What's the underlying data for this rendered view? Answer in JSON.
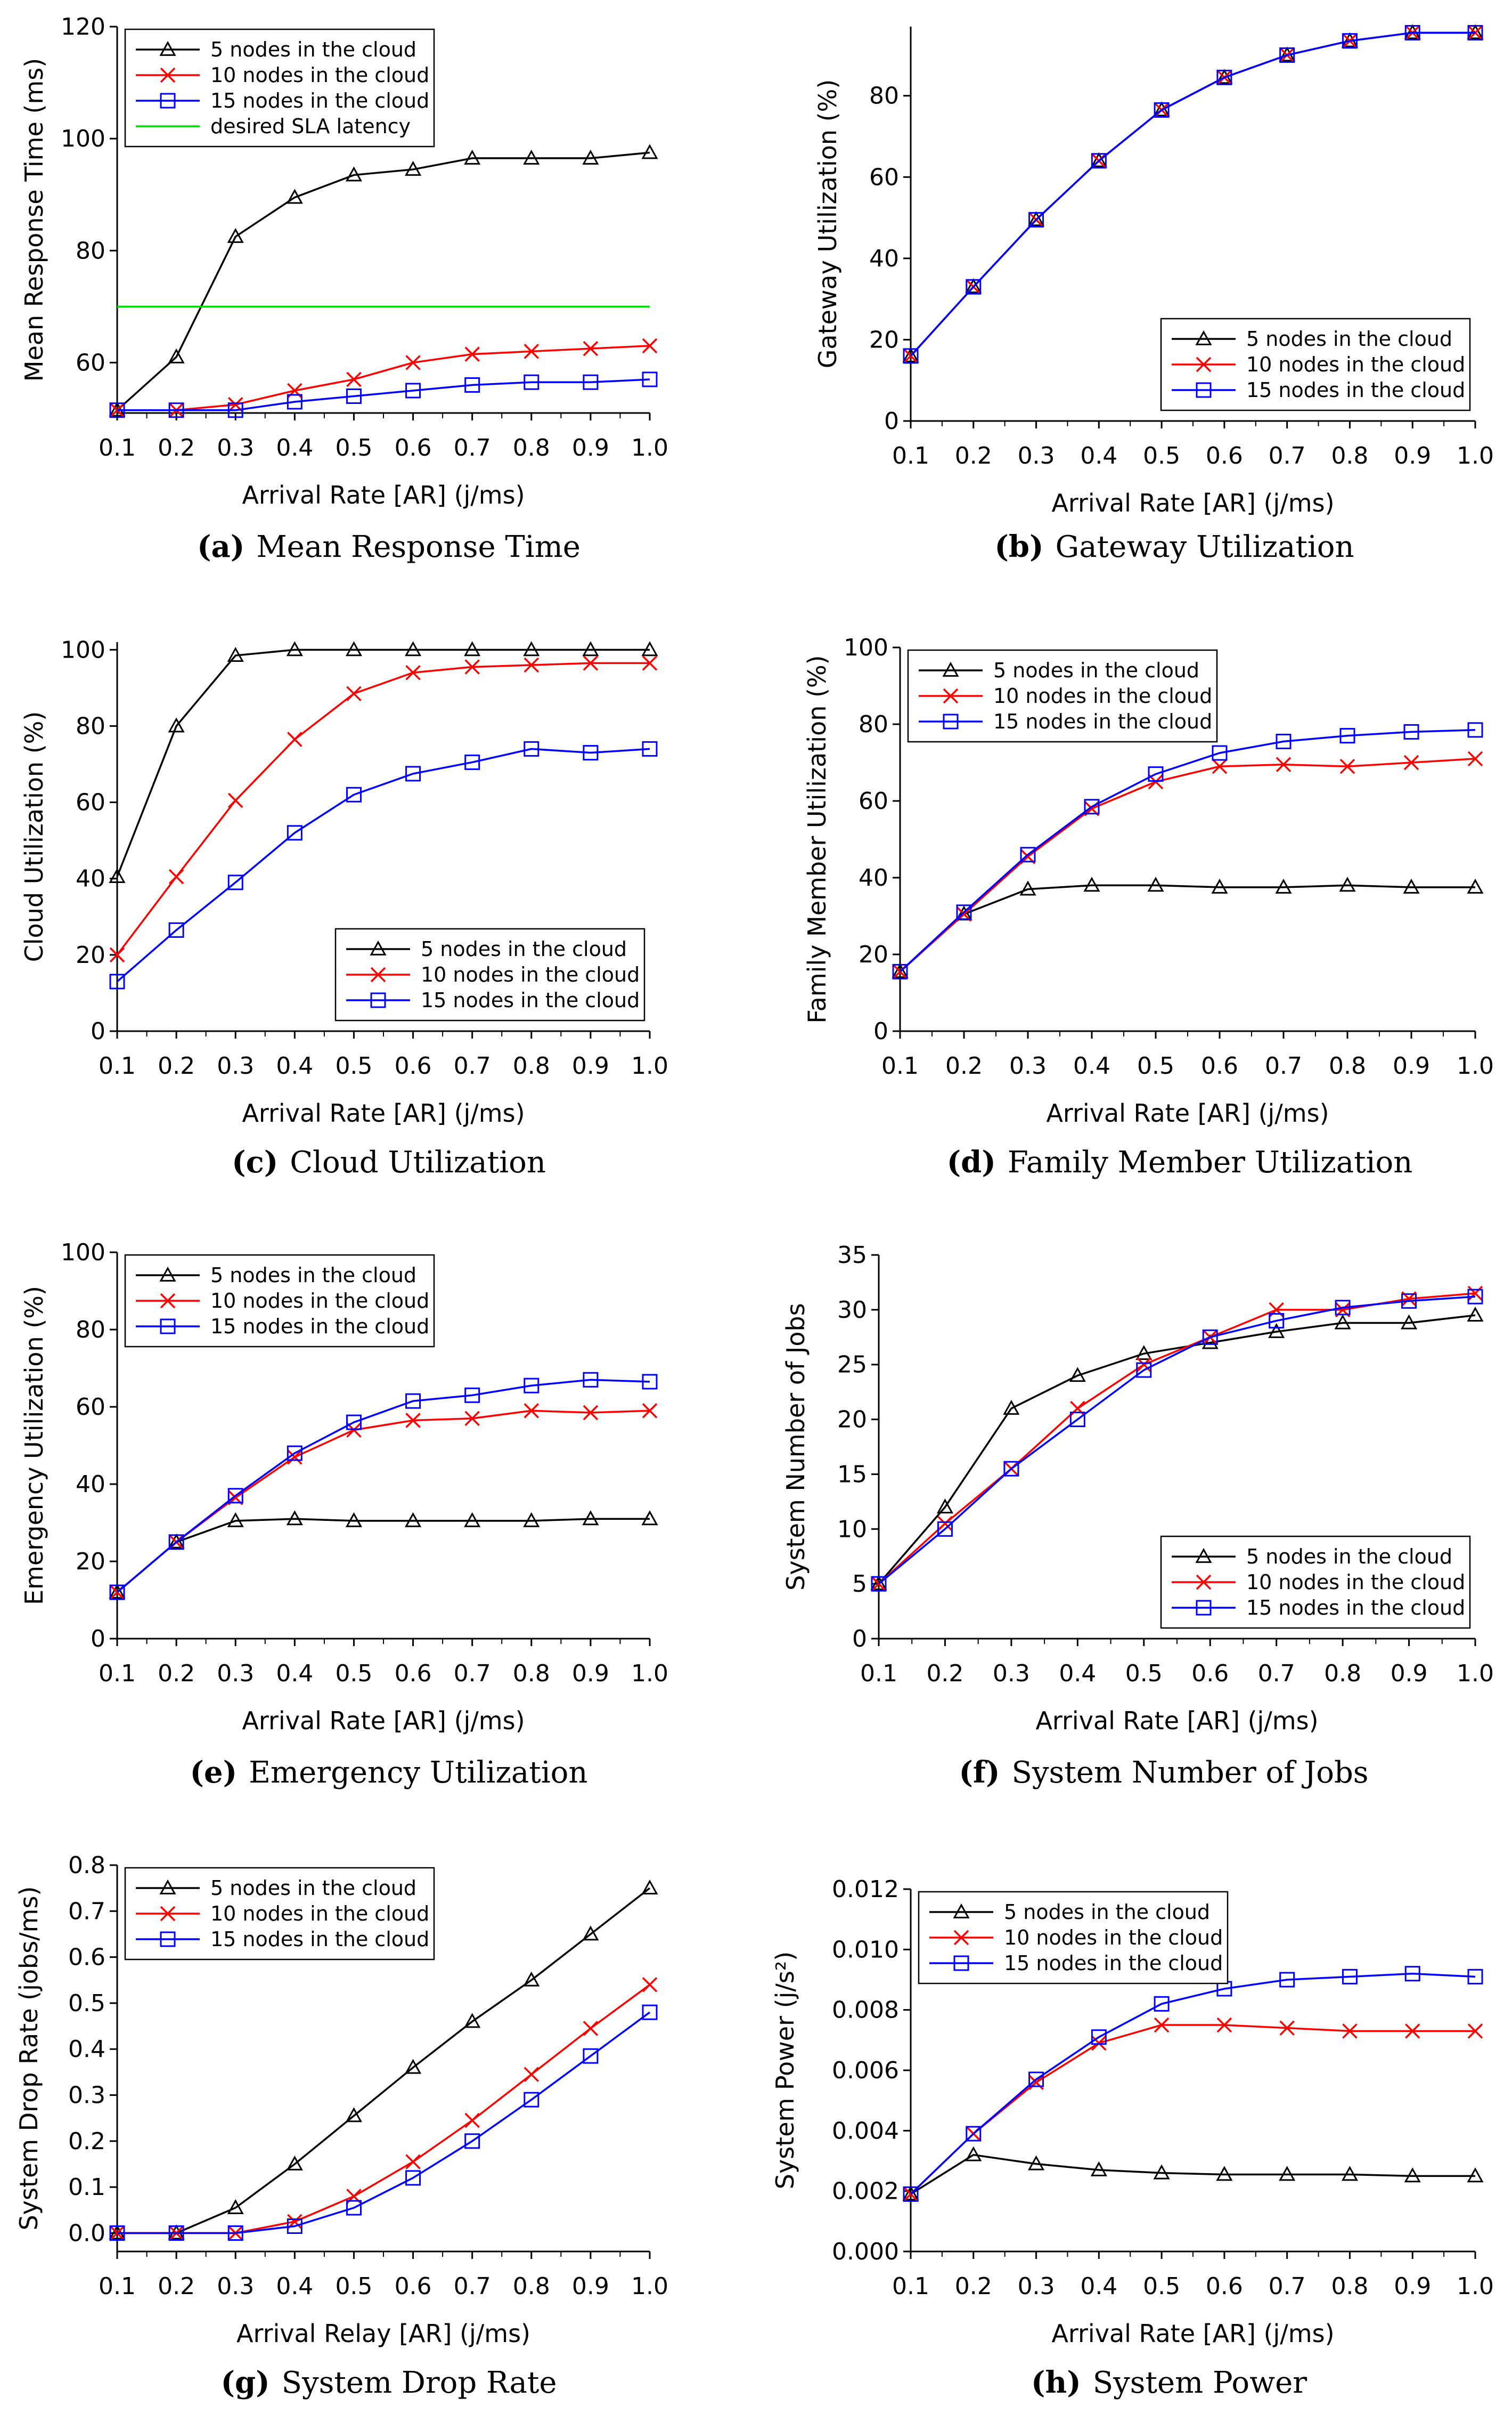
{
  "chart_data": [
    {
      "id": "a",
      "type": "line",
      "caption_letter": "(a)",
      "caption": "Mean Response Time",
      "xlabel": "Arrival Rate [AR] (j/ms)",
      "ylabel": "Mean Response Time (ms)",
      "xlim": [
        0.1,
        1.0
      ],
      "ylim": [
        51,
        120
      ],
      "yticks": [
        60,
        80,
        100,
        120
      ],
      "ytick_decimals": 0,
      "legend_position": "top-left",
      "x": [
        0.1,
        0.2,
        0.3,
        0.4,
        0.5,
        0.6,
        0.7,
        0.8,
        0.9,
        1.0
      ],
      "series": [
        {
          "name": "5 nodes in the cloud",
          "color": "#000000",
          "marker": "triangle",
          "values": [
            51.5,
            61,
            82.5,
            89.5,
            93.5,
            94.5,
            96.5,
            96.5,
            96.5,
            97.5
          ]
        },
        {
          "name": "10 nodes in the cloud",
          "color": "#ff0000",
          "marker": "x",
          "values": [
            51.5,
            51.5,
            52.5,
            55,
            57,
            60,
            61.5,
            62,
            62.5,
            63
          ]
        },
        {
          "name": "15 nodes in the cloud",
          "color": "#0000ff",
          "marker": "square",
          "values": [
            51.5,
            51.5,
            51.5,
            53,
            54,
            55,
            56,
            56.5,
            56.5,
            57
          ]
        },
        {
          "name": "desired SLA latency",
          "color": "#00dd00",
          "marker": "none",
          "values": [
            70,
            70,
            70,
            70,
            70,
            70,
            70,
            70,
            70,
            70
          ]
        }
      ]
    },
    {
      "id": "b",
      "type": "line",
      "caption_letter": "(b)",
      "caption": "Gateway Utilization",
      "xlabel": "Arrival Rate [AR] (j/ms)",
      "ylabel": "Gateway Utilization (%)",
      "xlim": [
        0.1,
        1.0
      ],
      "ylim": [
        0,
        97
      ],
      "yticks": [
        0,
        20,
        40,
        60,
        80
      ],
      "ytick_decimals": 0,
      "legend_position": "bottom-right",
      "x": [
        0.1,
        0.2,
        0.3,
        0.4,
        0.5,
        0.6,
        0.7,
        0.8,
        0.9,
        1.0
      ],
      "series": [
        {
          "name": "5 nodes in the cloud",
          "color": "#000000",
          "marker": "triangle",
          "values": [
            16,
            33,
            49.5,
            64,
            76.5,
            84.5,
            90,
            93.5,
            95.5,
            95.5
          ]
        },
        {
          "name": "10 nodes in the cloud",
          "color": "#ff0000",
          "marker": "x",
          "values": [
            16,
            33,
            49.5,
            64,
            76.5,
            84.5,
            90,
            93.5,
            95.5,
            95.5
          ]
        },
        {
          "name": "15 nodes in the cloud",
          "color": "#0000ff",
          "marker": "square",
          "values": [
            16,
            33,
            49.5,
            64,
            76.5,
            84.5,
            90,
            93.5,
            95.5,
            95.5
          ]
        }
      ]
    },
    {
      "id": "c",
      "type": "line",
      "caption_letter": "(c)",
      "caption": "Cloud Utilization",
      "xlabel": "Arrival Rate [AR] (j/ms)",
      "ylabel": "Cloud Utilization (%)",
      "xlim": [
        0.1,
        1.0
      ],
      "ylim": [
        0,
        102
      ],
      "yticks": [
        0,
        20,
        40,
        60,
        80,
        100
      ],
      "ytick_decimals": 0,
      "legend_position": "bottom-right",
      "x": [
        0.1,
        0.2,
        0.3,
        0.4,
        0.5,
        0.6,
        0.7,
        0.8,
        0.9,
        1.0
      ],
      "series": [
        {
          "name": "5 nodes in the cloud",
          "color": "#000000",
          "marker": "triangle",
          "values": [
            40.5,
            80,
            98.5,
            100,
            100,
            100,
            100,
            100,
            100,
            100
          ]
        },
        {
          "name": "10 nodes in the cloud",
          "color": "#ff0000",
          "marker": "x",
          "values": [
            20,
            40.5,
            60.5,
            76.5,
            88.5,
            94,
            95.5,
            96,
            96.5,
            96.5
          ]
        },
        {
          "name": "15 nodes in the cloud",
          "color": "#0000ff",
          "marker": "square",
          "values": [
            13,
            26.5,
            39,
            52,
            62,
            67.5,
            70.5,
            74,
            73,
            74
          ]
        }
      ]
    },
    {
      "id": "d",
      "type": "line",
      "caption_letter": "(d)",
      "caption": "Family Member Utilization",
      "xlabel": "Arrival Rate [AR] (j/ms)",
      "ylabel": "Family Member Utilization (%)",
      "xlim": [
        0.1,
        1.0
      ],
      "ylim": [
        0,
        100
      ],
      "yticks": [
        0,
        20,
        40,
        60,
        80,
        100
      ],
      "ytick_decimals": 0,
      "legend_position": "top-left",
      "x": [
        0.1,
        0.2,
        0.3,
        0.4,
        0.5,
        0.6,
        0.7,
        0.8,
        0.9,
        1.0
      ],
      "series": [
        {
          "name": "5 nodes in the cloud",
          "color": "#000000",
          "marker": "triangle",
          "values": [
            15.5,
            30.5,
            37,
            38,
            38,
            37.5,
            37.5,
            38,
            37.5,
            37.5
          ]
        },
        {
          "name": "10 nodes in the cloud",
          "color": "#ff0000",
          "marker": "x",
          "values": [
            15.5,
            30.5,
            45.5,
            58,
            65,
            69,
            69.5,
            69,
            70,
            71
          ]
        },
        {
          "name": "15 nodes in the cloud",
          "color": "#0000ff",
          "marker": "square",
          "values": [
            15.5,
            31,
            46,
            58.5,
            67,
            72.5,
            75.5,
            77,
            78,
            78.5
          ]
        }
      ]
    },
    {
      "id": "e",
      "type": "line",
      "caption_letter": "(e)",
      "caption": "Emergency Utilization",
      "xlabel": "Arrival Rate [AR] (j/ms)",
      "ylabel": "Emergency Utilization (%)",
      "xlim": [
        0.1,
        1.0
      ],
      "ylim": [
        0,
        100
      ],
      "yticks": [
        0,
        20,
        40,
        60,
        80,
        100
      ],
      "ytick_decimals": 0,
      "legend_position": "top-left",
      "x": [
        0.1,
        0.2,
        0.3,
        0.4,
        0.5,
        0.6,
        0.7,
        0.8,
        0.9,
        1.0
      ],
      "series": [
        {
          "name": "5 nodes in the cloud",
          "color": "#000000",
          "marker": "triangle",
          "values": [
            12,
            25,
            30.5,
            31,
            30.5,
            30.5,
            30.5,
            30.5,
            31,
            31
          ]
        },
        {
          "name": "10 nodes in the cloud",
          "color": "#ff0000",
          "marker": "x",
          "values": [
            12,
            25,
            36.5,
            47,
            54,
            56.5,
            57,
            59,
            58.5,
            59
          ]
        },
        {
          "name": "15 nodes in the cloud",
          "color": "#0000ff",
          "marker": "square",
          "values": [
            12,
            25,
            37,
            48,
            56,
            61.5,
            63,
            65.5,
            67,
            66.5
          ]
        }
      ]
    },
    {
      "id": "f",
      "type": "line",
      "caption_letter": "(f)",
      "caption": "System Number of Jobs",
      "xlabel": "Arrival Rate [AR] (j/ms)",
      "ylabel": "System Number of Jobs",
      "xlim": [
        0.1,
        1.0
      ],
      "ylim": [
        0,
        35
      ],
      "yticks": [
        0,
        5,
        10,
        15,
        20,
        25,
        30,
        35
      ],
      "ytick_decimals": 0,
      "legend_position": "bottom-right",
      "x": [
        0.1,
        0.2,
        0.3,
        0.4,
        0.5,
        0.6,
        0.7,
        0.8,
        0.9,
        1.0
      ],
      "series": [
        {
          "name": "5 nodes in the cloud",
          "color": "#000000",
          "marker": "triangle",
          "values": [
            5,
            12,
            21,
            24,
            26,
            27,
            28,
            28.8,
            28.8,
            29.5
          ]
        },
        {
          "name": "10 nodes in the cloud",
          "color": "#ff0000",
          "marker": "x",
          "values": [
            5,
            10.5,
            15.5,
            21,
            25,
            27.5,
            30,
            30,
            31,
            31.5
          ]
        },
        {
          "name": "15 nodes in the cloud",
          "color": "#0000ff",
          "marker": "square",
          "values": [
            5,
            10,
            15.5,
            20,
            24.5,
            27.5,
            29,
            30.2,
            30.8,
            31.2
          ]
        }
      ]
    },
    {
      "id": "g",
      "type": "line",
      "caption_letter": "(g)",
      "caption": "System Drop Rate",
      "xlabel": "Arrival Relay [AR] (j/ms)",
      "ylabel": "System Drop Rate (jobs/ms)",
      "xlim": [
        0.1,
        1.0
      ],
      "ylim": [
        -0.04,
        0.8
      ],
      "yticks": [
        0,
        0.1,
        0.2,
        0.3,
        0.4,
        0.5,
        0.6,
        0.7,
        0.8
      ],
      "ytick_decimals": 1,
      "legend_position": "top-left",
      "x": [
        0.1,
        0.2,
        0.3,
        0.4,
        0.5,
        0.6,
        0.7,
        0.8,
        0.9,
        1.0
      ],
      "series": [
        {
          "name": "5 nodes in the cloud",
          "color": "#000000",
          "marker": "triangle",
          "values": [
            0,
            0,
            0.055,
            0.15,
            0.255,
            0.36,
            0.46,
            0.55,
            0.65,
            0.75
          ]
        },
        {
          "name": "10 nodes in the cloud",
          "color": "#ff0000",
          "marker": "x",
          "values": [
            0,
            0,
            0,
            0.025,
            0.08,
            0.155,
            0.245,
            0.345,
            0.445,
            0.54
          ]
        },
        {
          "name": "15 nodes in the cloud",
          "color": "#0000ff",
          "marker": "square",
          "values": [
            0,
            0,
            0,
            0.015,
            0.055,
            0.12,
            0.2,
            0.29,
            0.385,
            0.48
          ]
        }
      ]
    },
    {
      "id": "h",
      "type": "line",
      "caption_letter": "(h)",
      "caption": "System Power",
      "xlabel": "Arrival Rate [AR] (j/ms)",
      "ylabel": "System Power (j/s²)",
      "xlim": [
        0.1,
        1.0
      ],
      "ylim": [
        0,
        0.012
      ],
      "yticks": [
        0,
        0.002,
        0.004,
        0.006,
        0.008,
        0.01,
        0.012
      ],
      "ytick_decimals": 3,
      "legend_position": "top-left",
      "x": [
        0.1,
        0.2,
        0.3,
        0.4,
        0.5,
        0.6,
        0.7,
        0.8,
        0.9,
        1.0
      ],
      "series": [
        {
          "name": "5 nodes in the cloud",
          "color": "#000000",
          "marker": "triangle",
          "values": [
            0.0019,
            0.0032,
            0.0029,
            0.0027,
            0.0026,
            0.00255,
            0.00255,
            0.00255,
            0.0025,
            0.0025
          ]
        },
        {
          "name": "10 nodes in the cloud",
          "color": "#ff0000",
          "marker": "x",
          "values": [
            0.0019,
            0.0039,
            0.0056,
            0.0069,
            0.0075,
            0.0075,
            0.0074,
            0.0073,
            0.0073,
            0.0073
          ]
        },
        {
          "name": "15 nodes in the cloud",
          "color": "#0000ff",
          "marker": "square",
          "values": [
            0.0019,
            0.0039,
            0.0057,
            0.0071,
            0.0082,
            0.0087,
            0.009,
            0.0091,
            0.0092,
            0.0091
          ]
        }
      ]
    }
  ]
}
